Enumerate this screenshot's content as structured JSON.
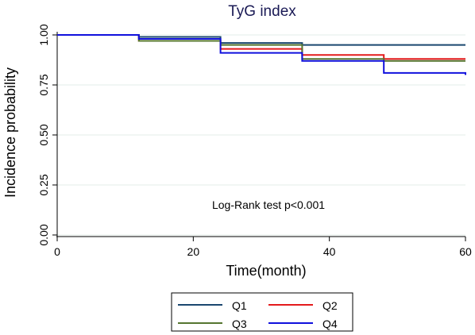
{
  "chart_data": {
    "type": "line",
    "title": "TyG index",
    "xlabel": "Time(month)",
    "ylabel": "Incidence probability",
    "xlim": [
      0,
      60
    ],
    "ylim": [
      0,
      1
    ],
    "xticks": [
      "0",
      "20",
      "40",
      "60"
    ],
    "yticks": [
      "0.00",
      "0.25",
      "0.50",
      "0.75",
      "1.00"
    ],
    "grid": true,
    "legend_position": "bottom",
    "annotation": "Log-Rank test p<0.001",
    "series": [
      {
        "name": "Q1",
        "color": "#1a476f",
        "x": [
          0,
          12,
          24,
          36,
          60
        ],
        "y": [
          1.0,
          0.99,
          0.96,
          0.95,
          0.95
        ]
      },
      {
        "name": "Q2",
        "color": "#e41a1c",
        "x": [
          0,
          12,
          24,
          36,
          48,
          60
        ],
        "y": [
          1.0,
          0.97,
          0.93,
          0.9,
          0.88,
          0.88
        ]
      },
      {
        "name": "Q3",
        "color": "#55752f",
        "x": [
          0,
          12,
          24,
          36,
          48,
          60
        ],
        "y": [
          1.0,
          0.97,
          0.95,
          0.88,
          0.87,
          0.87
        ]
      },
      {
        "name": "Q4",
        "color": "#1010dd",
        "x": [
          0,
          12,
          24,
          36,
          48,
          60
        ],
        "y": [
          1.0,
          0.98,
          0.91,
          0.87,
          0.81,
          0.8
        ]
      }
    ]
  }
}
